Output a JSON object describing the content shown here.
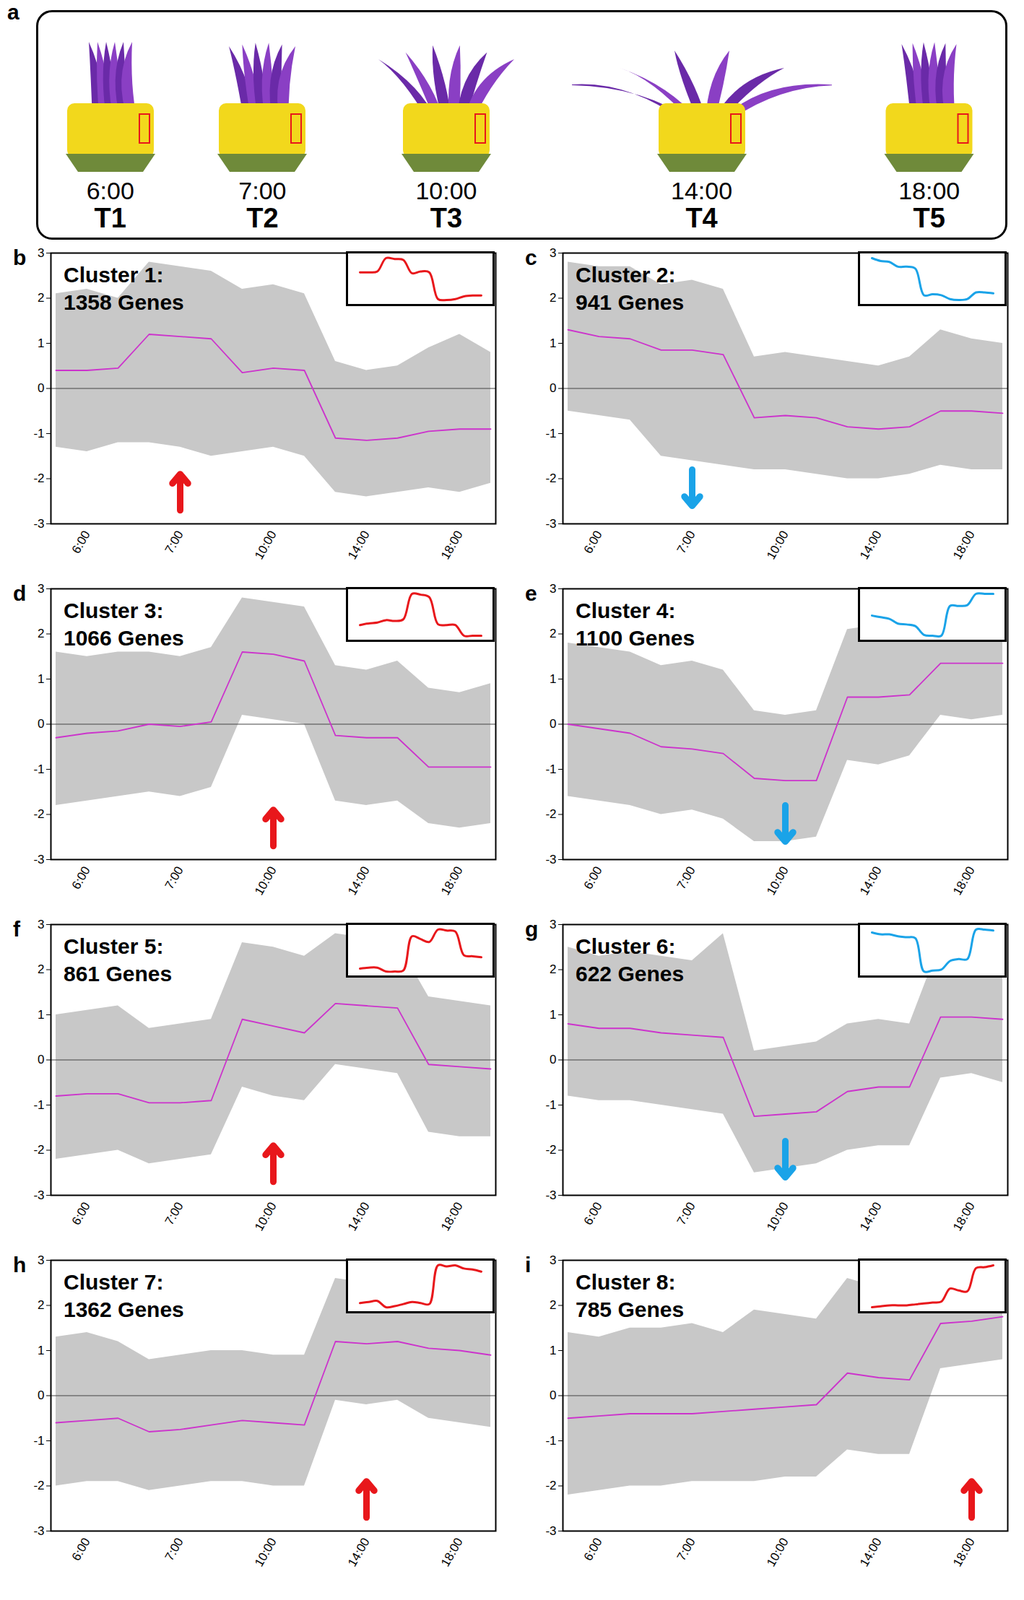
{
  "panel_a": {
    "label": "a",
    "stages": [
      {
        "time": "6:00",
        "stage": "T1"
      },
      {
        "time": "7:00",
        "stage": "T2"
      },
      {
        "time": "10:00",
        "stage": "T3"
      },
      {
        "time": "14:00",
        "stage": "T4"
      },
      {
        "time": "18:00",
        "stage": "T5"
      }
    ]
  },
  "chart_data": [
    {
      "type": "line",
      "panel": "b",
      "title": "Cluster 1:",
      "subtitle": "1358 Genes",
      "categories": [
        null,
        "6:00",
        null,
        null,
        "7:00",
        null,
        null,
        "10:00",
        null,
        null,
        "14:00",
        null,
        null,
        "18:00",
        null
      ],
      "ylim": [
        -3,
        3
      ],
      "yticks": [
        -3,
        -2,
        -1,
        0,
        1,
        2,
        3
      ],
      "reference_line": 0,
      "color": "#e8171b",
      "series": [
        {
          "color": "#cc33cc",
          "values": [
            0.4,
            0.4,
            0.45,
            1.2,
            1.15,
            1.1,
            0.35,
            0.45,
            0.4,
            -1.1,
            -1.15,
            -1.1,
            -0.95,
            -0.9,
            -0.9
          ],
          "spread_low": [
            -1.3,
            -1.4,
            -1.2,
            -1.2,
            -1.3,
            -1.5,
            -1.4,
            -1.3,
            -1.5,
            -2.3,
            -2.4,
            -2.3,
            -2.2,
            -2.3,
            -2.1
          ],
          "spread_high": [
            2.1,
            2.2,
            2.0,
            2.8,
            2.7,
            2.6,
            2.2,
            2.3,
            2.1,
            0.6,
            0.4,
            0.5,
            0.9,
            1.2,
            0.8
          ]
        }
      ],
      "annotations": [
        {
          "x": "7:00",
          "from": -2.7,
          "to": -1.9
        }
      ]
    },
    {
      "type": "line",
      "panel": "c",
      "title": "Cluster 2:",
      "subtitle": "941 Genes",
      "categories": [
        null,
        "6:00",
        null,
        null,
        "7:00",
        null,
        null,
        "10:00",
        null,
        null,
        "14:00",
        null,
        null,
        "18:00",
        null
      ],
      "ylim": [
        -3,
        3
      ],
      "yticks": [
        -3,
        -2,
        -1,
        0,
        1,
        2,
        3
      ],
      "reference_line": 0,
      "color": "#1aa3e8",
      "series": [
        {
          "color": "#cc33cc",
          "values": [
            1.3,
            1.15,
            1.1,
            0.85,
            0.85,
            0.75,
            -0.65,
            -0.6,
            -0.65,
            -0.85,
            -0.9,
            -0.85,
            -0.5,
            -0.5,
            -0.55
          ],
          "spread_low": [
            -0.5,
            -0.6,
            -0.7,
            -1.5,
            -1.6,
            -1.7,
            -1.8,
            -1.8,
            -1.9,
            -2.0,
            -2.0,
            -1.9,
            -1.7,
            -1.8,
            -1.8
          ],
          "spread_high": [
            2.8,
            2.7,
            2.7,
            2.3,
            2.4,
            2.2,
            0.7,
            0.8,
            0.7,
            0.6,
            0.5,
            0.7,
            1.3,
            1.1,
            1.0
          ]
        }
      ],
      "annotations": [
        {
          "x": "7:00",
          "from": -1.8,
          "to": -2.6
        }
      ]
    },
    {
      "type": "line",
      "panel": "d",
      "title": "Cluster 3:",
      "subtitle": "1066 Genes",
      "categories": [
        null,
        "6:00",
        null,
        null,
        "7:00",
        null,
        null,
        "10:00",
        null,
        null,
        "14:00",
        null,
        null,
        "18:00",
        null
      ],
      "ylim": [
        -3,
        3
      ],
      "yticks": [
        -3,
        -2,
        -1,
        0,
        1,
        2,
        3
      ],
      "reference_line": 0,
      "color": "#e8171b",
      "series": [
        {
          "color": "#cc33cc",
          "values": [
            -0.3,
            -0.2,
            -0.15,
            0,
            -0.05,
            0.05,
            1.6,
            1.55,
            1.4,
            -0.25,
            -0.3,
            -0.3,
            -0.95,
            -0.95,
            -0.95
          ],
          "spread_low": [
            -1.8,
            -1.7,
            -1.6,
            -1.5,
            -1.6,
            -1.4,
            0.2,
            0.1,
            0.0,
            -1.7,
            -1.8,
            -1.7,
            -2.2,
            -2.3,
            -2.2
          ],
          "spread_high": [
            1.6,
            1.5,
            1.6,
            1.6,
            1.5,
            1.7,
            2.8,
            2.7,
            2.6,
            1.3,
            1.2,
            1.4,
            0.8,
            0.7,
            0.9
          ]
        }
      ],
      "annotations": [
        {
          "x": "10:00",
          "from": -2.7,
          "to": -1.9
        }
      ]
    },
    {
      "type": "line",
      "panel": "e",
      "title": "Cluster 4:",
      "subtitle": "1100 Genes",
      "categories": [
        null,
        "6:00",
        null,
        null,
        "7:00",
        null,
        null,
        "10:00",
        null,
        null,
        "14:00",
        null,
        null,
        "18:00",
        null
      ],
      "ylim": [
        -3,
        3
      ],
      "yticks": [
        -3,
        -2,
        -1,
        0,
        1,
        2,
        3
      ],
      "reference_line": 0,
      "color": "#1aa3e8",
      "series": [
        {
          "color": "#cc33cc",
          "values": [
            0,
            -0.1,
            -0.2,
            -0.5,
            -0.55,
            -0.65,
            -1.2,
            -1.25,
            -1.25,
            0.6,
            0.6,
            0.65,
            1.35,
            1.35,
            1.35
          ],
          "spread_low": [
            -1.6,
            -1.7,
            -1.8,
            -2.0,
            -1.9,
            -2.1,
            -2.6,
            -2.6,
            -2.5,
            -0.8,
            -0.9,
            -0.7,
            0.2,
            0.1,
            0.2
          ],
          "spread_high": [
            1.8,
            1.7,
            1.6,
            1.3,
            1.4,
            1.2,
            0.3,
            0.2,
            0.3,
            2.1,
            2.2,
            2.0,
            2.8,
            2.7,
            2.8
          ]
        }
      ],
      "annotations": [
        {
          "x": "10:00",
          "from": -1.8,
          "to": -2.6
        }
      ]
    },
    {
      "type": "line",
      "panel": "f",
      "title": "Cluster 5:",
      "subtitle": "861 Genes",
      "categories": [
        null,
        "6:00",
        null,
        null,
        "7:00",
        null,
        null,
        "10:00",
        null,
        null,
        "14:00",
        null,
        null,
        "18:00",
        null
      ],
      "ylim": [
        -3,
        3
      ],
      "yticks": [
        -3,
        -2,
        -1,
        0,
        1,
        2,
        3
      ],
      "reference_line": 0,
      "color": "#e8171b",
      "series": [
        {
          "color": "#cc33cc",
          "values": [
            -0.8,
            -0.75,
            -0.75,
            -0.95,
            -0.95,
            -0.9,
            0.9,
            0.75,
            0.6,
            1.25,
            1.2,
            1.15,
            -0.1,
            -0.15,
            -0.2
          ],
          "spread_low": [
            -2.2,
            -2.1,
            -2.0,
            -2.3,
            -2.2,
            -2.1,
            -0.6,
            -0.8,
            -0.9,
            -0.1,
            -0.2,
            -0.3,
            -1.6,
            -1.7,
            -1.7
          ],
          "spread_high": [
            1.0,
            1.1,
            1.2,
            0.7,
            0.8,
            0.9,
            2.6,
            2.5,
            2.3,
            2.8,
            2.7,
            2.6,
            1.4,
            1.3,
            1.2
          ]
        }
      ],
      "annotations": [
        {
          "x": "10:00",
          "from": -2.7,
          "to": -1.9
        }
      ]
    },
    {
      "type": "line",
      "panel": "g",
      "title": "Cluster 6:",
      "subtitle": "622 Genes",
      "categories": [
        null,
        "6:00",
        null,
        null,
        "7:00",
        null,
        null,
        "10:00",
        null,
        null,
        "14:00",
        null,
        null,
        "18:00",
        null
      ],
      "ylim": [
        -3,
        3
      ],
      "yticks": [
        -3,
        -2,
        -1,
        0,
        1,
        2,
        3
      ],
      "reference_line": 0,
      "color": "#1aa3e8",
      "series": [
        {
          "color": "#cc33cc",
          "values": [
            0.8,
            0.7,
            0.7,
            0.6,
            0.55,
            0.5,
            -1.25,
            -1.2,
            -1.15,
            -0.7,
            -0.6,
            -0.6,
            0.95,
            0.95,
            0.9
          ],
          "spread_low": [
            -0.8,
            -0.9,
            -0.9,
            -1.0,
            -1.1,
            -1.2,
            -2.5,
            -2.4,
            -2.3,
            -2.0,
            -1.9,
            -1.9,
            -0.4,
            -0.3,
            -0.5
          ],
          "spread_high": [
            2.5,
            2.3,
            2.4,
            2.3,
            2.2,
            2.8,
            0.2,
            0.3,
            0.4,
            0.8,
            0.9,
            0.8,
            2.6,
            2.5,
            2.4
          ]
        }
      ],
      "annotations": [
        {
          "x": "10:00",
          "from": -1.8,
          "to": -2.6
        }
      ]
    },
    {
      "type": "line",
      "panel": "h",
      "title": "Cluster 7:",
      "subtitle": "1362 Genes",
      "categories": [
        null,
        "6:00",
        null,
        null,
        "7:00",
        null,
        null,
        "10:00",
        null,
        null,
        "14:00",
        null,
        null,
        "18:00",
        null
      ],
      "ylim": [
        -3,
        3
      ],
      "yticks": [
        -3,
        -2,
        -1,
        0,
        1,
        2,
        3
      ],
      "reference_line": 0,
      "color": "#e8171b",
      "series": [
        {
          "color": "#cc33cc",
          "values": [
            -0.6,
            -0.55,
            -0.5,
            -0.8,
            -0.75,
            -0.65,
            -0.55,
            -0.6,
            -0.65,
            1.2,
            1.15,
            1.2,
            1.05,
            1.0,
            0.9
          ],
          "spread_low": [
            -2.0,
            -1.9,
            -1.9,
            -2.1,
            -2.0,
            -1.9,
            -1.9,
            -2.0,
            -2.0,
            -0.1,
            -0.2,
            -0.1,
            -0.5,
            -0.6,
            -0.7
          ],
          "spread_high": [
            1.3,
            1.4,
            1.2,
            0.8,
            0.9,
            1.0,
            1.0,
            0.9,
            0.9,
            2.6,
            2.5,
            2.6,
            2.5,
            2.4,
            2.3
          ]
        }
      ],
      "annotations": [
        {
          "x": "14:00",
          "from": -2.7,
          "to": -1.9
        }
      ]
    },
    {
      "type": "line",
      "panel": "i",
      "title": "Cluster 8:",
      "subtitle": "785 Genes",
      "categories": [
        null,
        "6:00",
        null,
        null,
        "7:00",
        null,
        null,
        "10:00",
        null,
        null,
        "14:00",
        null,
        null,
        "18:00",
        null
      ],
      "ylim": [
        -3,
        3
      ],
      "yticks": [
        -3,
        -2,
        -1,
        0,
        1,
        2,
        3
      ],
      "reference_line": 0,
      "color": "#e8171b",
      "series": [
        {
          "color": "#cc33cc",
          "values": [
            -0.5,
            -0.45,
            -0.4,
            -0.4,
            -0.4,
            -0.35,
            -0.3,
            -0.25,
            -0.2,
            0.5,
            0.4,
            0.35,
            1.6,
            1.65,
            1.75
          ],
          "spread_low": [
            -2.2,
            -2.1,
            -2.0,
            -2.0,
            -1.9,
            -1.9,
            -1.9,
            -1.8,
            -1.8,
            -1.2,
            -1.3,
            -1.3,
            0.6,
            0.7,
            0.8
          ],
          "spread_high": [
            1.4,
            1.3,
            1.5,
            1.5,
            1.6,
            1.4,
            1.9,
            1.8,
            1.7,
            2.6,
            2.4,
            2.3,
            2.8,
            2.7,
            2.9
          ]
        }
      ],
      "annotations": [
        {
          "x": "18:00",
          "from": -2.7,
          "to": -1.9
        }
      ]
    }
  ]
}
